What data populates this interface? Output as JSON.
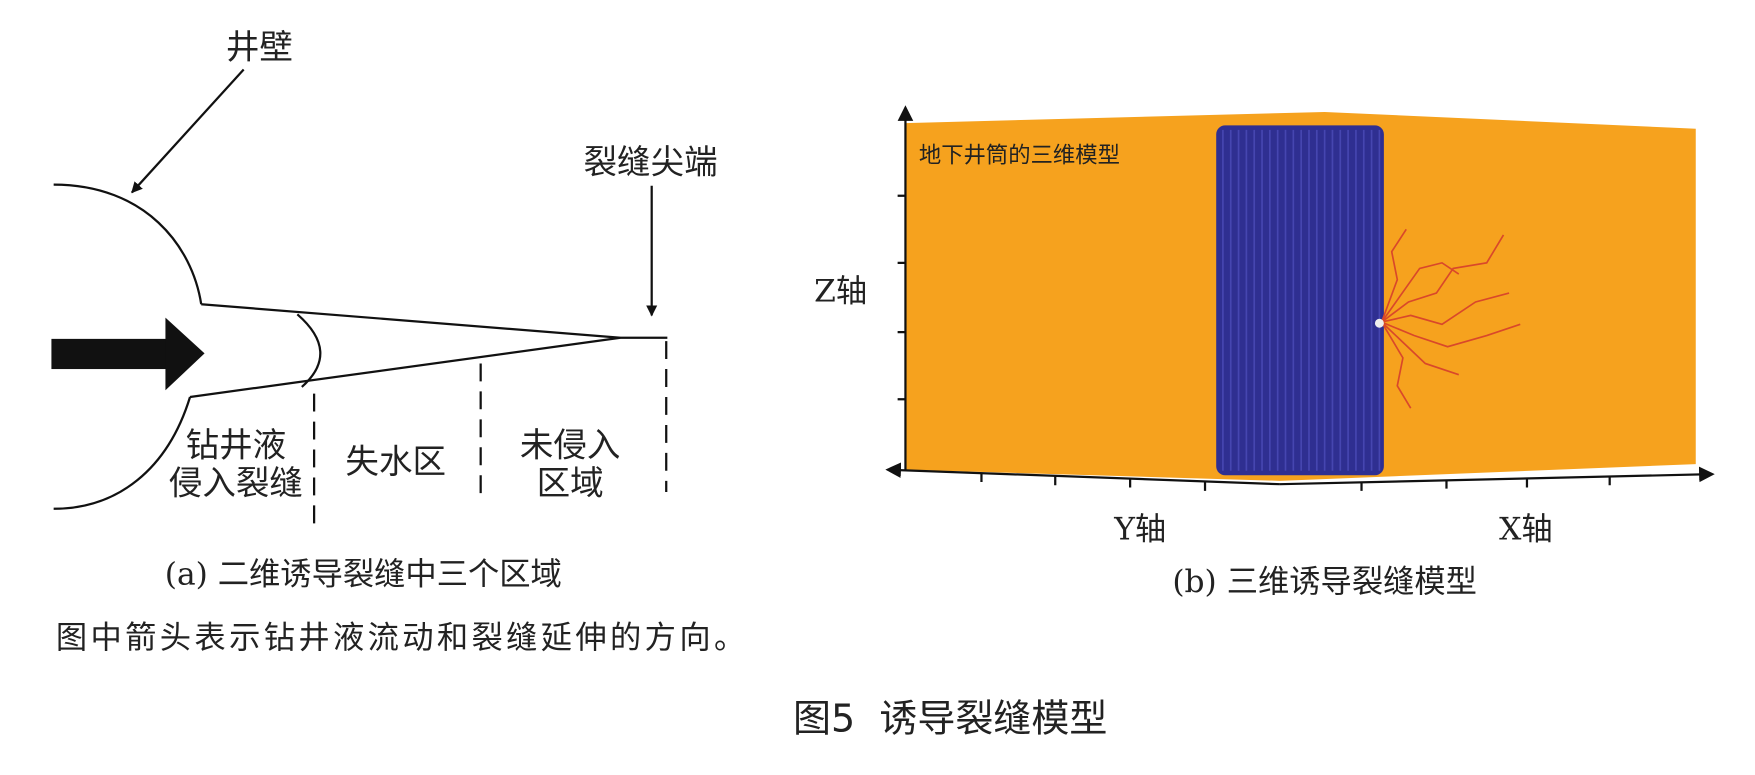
{
  "panel_a": {
    "wall_label": "井壁",
    "tip_label": "裂缝尖端",
    "zones": [
      [
        "钻井液",
        "侵入裂缝"
      ],
      [
        "失水区"
      ],
      [
        "未侵入",
        "区域"
      ]
    ],
    "caption": "(a) 二维诱导裂缝中三个区域",
    "note": "图中箭头表示钻井液流动和裂缝延伸的方向。"
  },
  "panel_b": {
    "model_label": "地下井筒的三维模型",
    "z_axis": "Z轴",
    "y_axis": "Y轴",
    "x_axis": "X轴",
    "caption": "(b) 三维诱导裂缝模型"
  },
  "figure_caption": "图5  诱导裂缝模型"
}
